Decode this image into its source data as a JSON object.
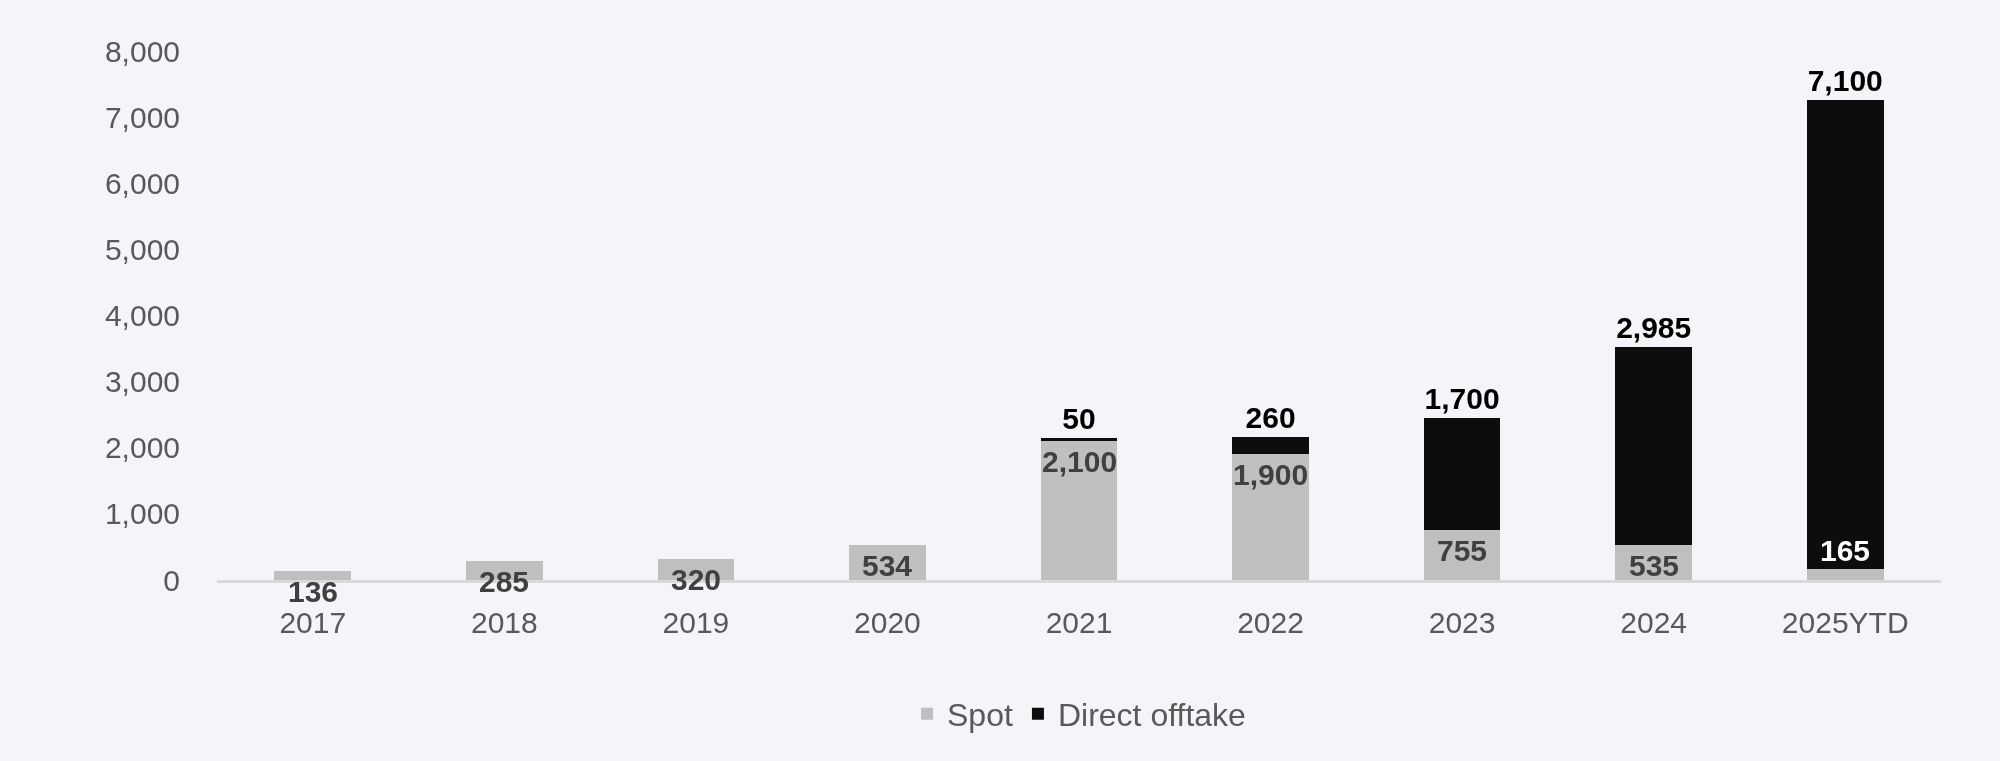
{
  "chart_data": {
    "type": "bar",
    "categories": [
      "2017",
      "2018",
      "2019",
      "2020",
      "2021",
      "2022",
      "2023",
      "2024",
      "2025YTD"
    ],
    "stacked": true,
    "series": [
      {
        "name": "Spot",
        "color": "#bfbfbf",
        "values": [
          136,
          285,
          320,
          534,
          2100,
          1900,
          755,
          535,
          165
        ],
        "value_labels": [
          "136",
          "285",
          "320",
          "534",
          "2,100",
          "1,900",
          "755",
          "535",
          "165"
        ]
      },
      {
        "name": "Direct offtake",
        "color": "#0d0d0d",
        "values": [
          null,
          null,
          null,
          null,
          50,
          260,
          1700,
          2985,
          7100
        ],
        "value_labels": [
          null,
          null,
          null,
          null,
          "50",
          "260",
          "1,700",
          "2,985",
          "7,100"
        ]
      }
    ],
    "ylim": [
      0,
      8000
    ],
    "yticks": [
      0,
      {
        "value": 1000,
        "label": "1,000"
      },
      {
        "value": 2000,
        "label": "2,000"
      },
      {
        "value": 3000,
        "label": "3,000"
      },
      {
        "value": 4000,
        "label": "4,000"
      },
      {
        "value": 5000,
        "label": "5,000"
      },
      {
        "value": 6000,
        "label": "6,000"
      },
      {
        "value": 7000,
        "label": "7,000"
      },
      {
        "value": 8000,
        "label": "8,000"
      }
    ],
    "legend": "bottom"
  }
}
